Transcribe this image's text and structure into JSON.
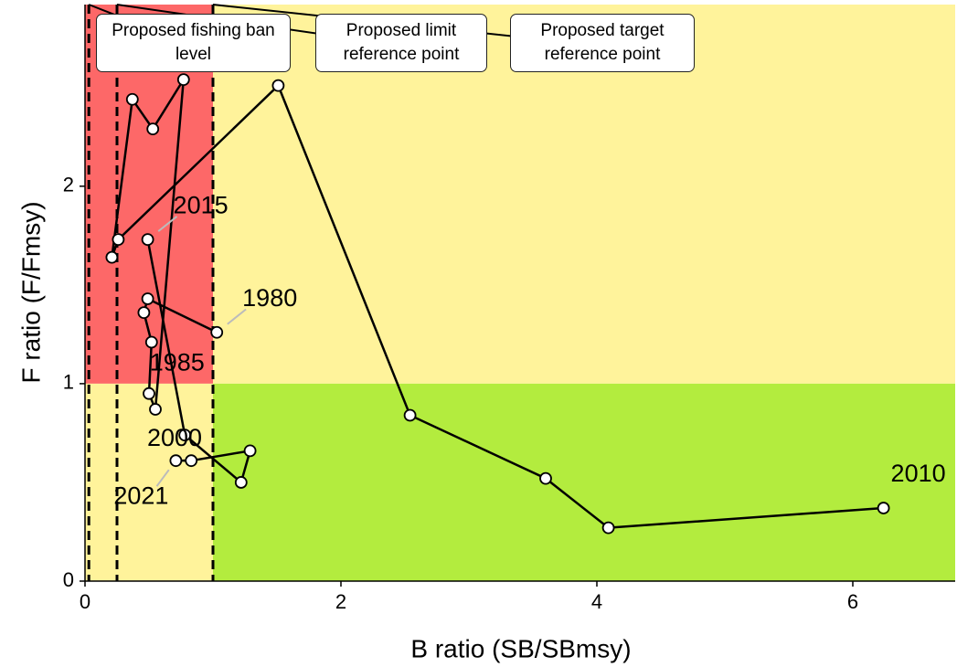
{
  "chart_data": {
    "type": "kobe",
    "xlabel": "B ratio (SB/SBmsy)",
    "ylabel": "F ratio (F/Fmsy)",
    "xlim": [
      0,
      6.8
    ],
    "ylim": [
      0,
      2.92
    ],
    "xticks": [
      0,
      2,
      4,
      6
    ],
    "yticks": [
      0,
      1,
      2
    ],
    "split": {
      "x": 1,
      "y": 1
    },
    "zone_colors": {
      "red": "#fd6868",
      "yellow": "#fff39b",
      "green": "#b3ec3e"
    },
    "line_color": "#000000",
    "x": [
      1.03,
      0.49,
      0.46,
      0.52,
      0.5,
      0.55,
      0.77,
      0.53,
      0.37,
      0.21,
      0.26,
      1.51,
      2.54,
      3.6,
      4.09,
      6.24,
      null,
      0.49,
      0.78,
      1.22,
      1.29,
      0.83,
      0.71
    ],
    "y": [
      1.26,
      1.43,
      1.36,
      1.21,
      0.95,
      0.87,
      2.54,
      2.29,
      2.44,
      1.64,
      1.73,
      2.51,
      0.84,
      0.52,
      0.27,
      0.37,
      null,
      1.73,
      0.74,
      0.5,
      0.66,
      0.61,
      0.61
    ],
    "reference_lines": [
      {
        "x": 0.03,
        "label": "Proposed fishing ban level"
      },
      {
        "x": 0.25,
        "label": "Proposed limit reference point"
      },
      {
        "x": 1.0,
        "label": "Proposed target reference point"
      }
    ],
    "annotations": [
      {
        "text": "1980",
        "x": 1.03,
        "y": 1.26
      },
      {
        "text": "1985",
        "x": 0.52,
        "y": 1.21
      },
      {
        "text": "2000",
        "x": 0.5,
        "y": 0.95
      },
      {
        "text": "2010",
        "x": 6.24,
        "y": 0.37
      },
      {
        "text": "2015",
        "x": 0.49,
        "y": 1.73
      },
      {
        "text": "2021",
        "x": 0.71,
        "y": 0.61
      }
    ]
  }
}
